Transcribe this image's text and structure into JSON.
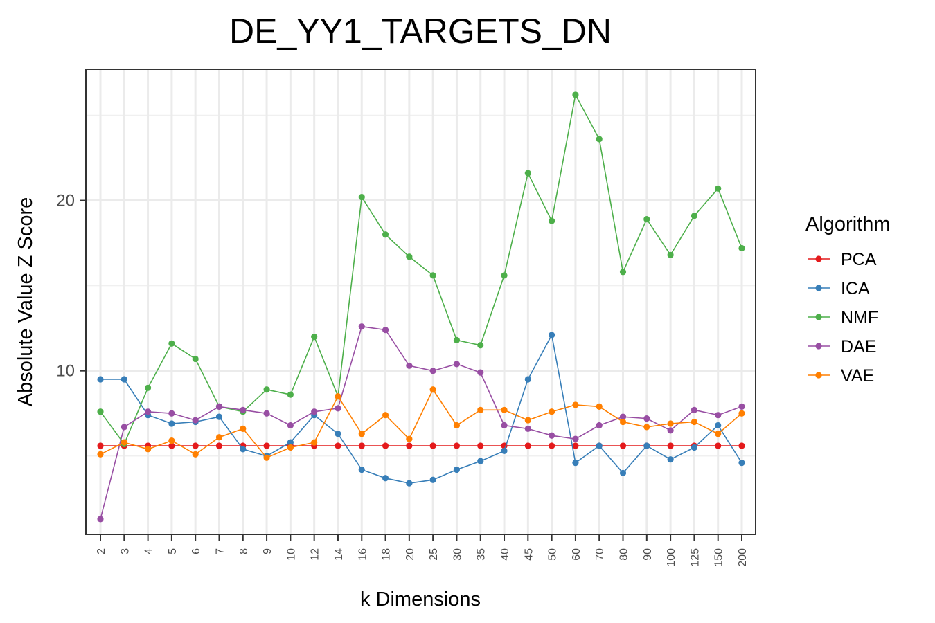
{
  "chart_data": {
    "type": "line",
    "title": "DE_YY1_TARGETS_DN",
    "xlabel": "k Dimensions",
    "ylabel": "Absolute Value Z Score",
    "categories": [
      "2",
      "3",
      "4",
      "5",
      "6",
      "7",
      "8",
      "9",
      "10",
      "12",
      "14",
      "16",
      "18",
      "20",
      "25",
      "30",
      "35",
      "40",
      "45",
      "50",
      "60",
      "70",
      "80",
      "90",
      "100",
      "125",
      "150",
      "200"
    ],
    "y_ticks": [
      10,
      20
    ],
    "ylim": [
      0.4,
      27.7
    ],
    "grid": true,
    "legend": {
      "title": "Algorithm",
      "position": "right"
    },
    "series": [
      {
        "name": "PCA",
        "color": "#e41a1c",
        "values": [
          5.6,
          5.6,
          5.6,
          5.6,
          5.6,
          5.6,
          5.6,
          5.6,
          5.6,
          5.6,
          5.6,
          5.6,
          5.6,
          5.6,
          5.6,
          5.6,
          5.6,
          5.6,
          5.6,
          5.6,
          5.6,
          5.6,
          5.6,
          5.6,
          5.6,
          5.6,
          5.6,
          5.6
        ]
      },
      {
        "name": "ICA",
        "color": "#377eb8",
        "values": [
          9.5,
          9.5,
          7.4,
          6.9,
          7.0,
          7.3,
          5.4,
          5.0,
          5.8,
          7.4,
          6.3,
          4.2,
          3.7,
          3.4,
          3.6,
          4.2,
          4.7,
          5.3,
          9.5,
          12.1,
          4.6,
          5.6,
          4.0,
          5.6,
          4.8,
          5.5,
          6.8,
          4.6
        ]
      },
      {
        "name": "NMF",
        "color": "#4daf4a",
        "values": [
          7.6,
          5.7,
          9.0,
          11.6,
          10.7,
          7.9,
          7.6,
          8.9,
          8.6,
          12.0,
          8.5,
          20.2,
          18.0,
          16.7,
          15.6,
          11.8,
          11.5,
          15.6,
          21.6,
          18.8,
          26.2,
          23.6,
          15.8,
          18.9,
          16.8,
          19.1,
          20.7,
          17.2
        ]
      },
      {
        "name": "DAE",
        "color": "#984ea3",
        "values": [
          1.3,
          6.7,
          7.6,
          7.5,
          7.1,
          7.9,
          7.7,
          7.5,
          6.8,
          7.6,
          7.8,
          12.6,
          12.4,
          10.3,
          10.0,
          10.4,
          9.9,
          6.8,
          6.6,
          6.2,
          6.0,
          6.8,
          7.3,
          7.2,
          6.5,
          7.7,
          7.4,
          7.9
        ]
      },
      {
        "name": "VAE",
        "color": "#ff7f00",
        "values": [
          5.1,
          5.8,
          5.4,
          5.9,
          5.1,
          6.1,
          6.6,
          4.9,
          5.5,
          5.8,
          8.5,
          6.3,
          7.4,
          6.0,
          8.9,
          6.8,
          7.7,
          7.7,
          7.1,
          7.6,
          8.0,
          7.9,
          7.0,
          6.7,
          6.9,
          7.0,
          6.3,
          7.5
        ]
      }
    ]
  }
}
